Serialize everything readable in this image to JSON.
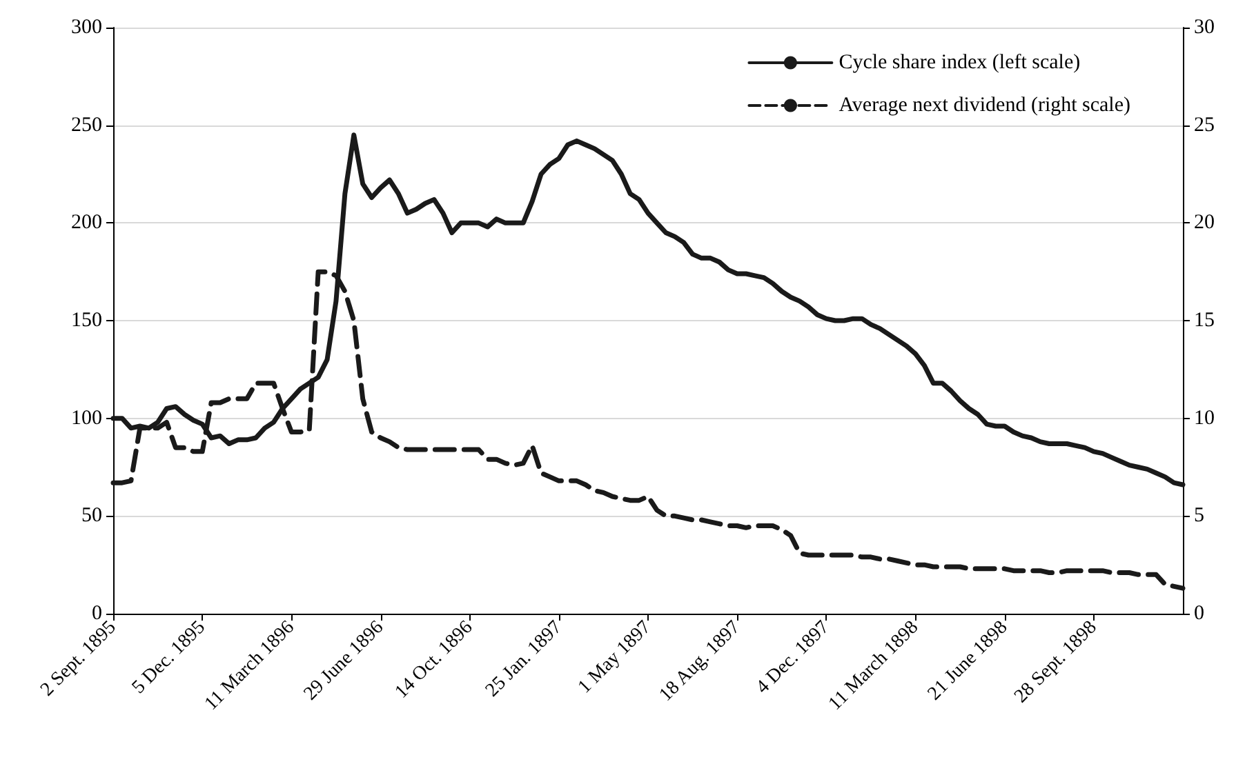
{
  "chart_data": {
    "type": "line",
    "categories": [
      "2 Sept. 1895",
      null,
      null,
      null,
      null,
      null,
      null,
      null,
      null,
      null,
      "5 Dec. 1895",
      null,
      null,
      null,
      null,
      null,
      null,
      null,
      null,
      null,
      "11 March 1896",
      null,
      null,
      null,
      null,
      null,
      null,
      null,
      null,
      null,
      "29 June 1896",
      null,
      null,
      null,
      null,
      null,
      null,
      null,
      null,
      null,
      "14 Oct. 1896",
      null,
      null,
      null,
      null,
      null,
      null,
      null,
      null,
      null,
      "25 Jan. 1897",
      null,
      null,
      null,
      null,
      null,
      null,
      null,
      null,
      null,
      "1 May 1897",
      null,
      null,
      null,
      null,
      null,
      null,
      null,
      null,
      null,
      "18 Aug. 1897",
      null,
      null,
      null,
      null,
      null,
      null,
      null,
      null,
      null,
      "4 Dec. 1897",
      null,
      null,
      null,
      null,
      null,
      null,
      null,
      null,
      null,
      "11 March 1898",
      null,
      null,
      null,
      null,
      null,
      null,
      null,
      null,
      null,
      "21 June 1898",
      null,
      null,
      null,
      null,
      null,
      null,
      null,
      null,
      null,
      "28 Sept. 1898",
      null,
      null,
      null,
      null,
      null,
      null,
      null,
      null,
      null,
      null
    ],
    "series": [
      {
        "name": "Cycle share index (left scale)",
        "color": "#1a1a1a",
        "line_style": "solid",
        "axis": "y",
        "values": [
          100,
          100,
          95,
          96,
          95,
          98,
          105,
          106,
          102,
          99,
          97,
          90,
          91,
          87,
          89,
          89,
          90,
          95,
          98,
          105,
          110,
          115,
          118,
          121,
          130,
          160,
          215,
          245,
          220,
          213,
          218,
          222,
          215,
          205,
          207,
          210,
          212,
          205,
          195,
          200,
          200,
          200,
          198,
          202,
          200,
          200,
          200,
          211,
          225,
          230,
          233,
          240,
          242,
          240,
          238,
          235,
          232,
          225,
          215,
          212,
          205,
          200,
          195,
          193,
          190,
          184,
          182,
          182,
          180,
          176,
          174,
          174,
          173,
          172,
          169,
          165,
          162,
          160,
          157,
          153,
          151,
          150,
          150,
          151,
          151,
          148,
          146,
          143,
          140,
          137,
          133,
          127,
          118,
          118,
          114,
          109,
          105,
          102,
          97,
          96,
          96,
          93,
          91,
          90,
          88,
          87,
          87,
          87,
          86,
          85,
          83,
          82,
          80,
          78,
          76,
          75,
          74,
          72,
          70,
          67,
          66
        ]
      },
      {
        "name": "Average next dividend (right scale)",
        "color": "#1a1a1a",
        "line_style": "dashed",
        "axis": "y2",
        "values": [
          6.7,
          6.7,
          6.8,
          9.5,
          9.5,
          9.5,
          9.8,
          8.5,
          8.5,
          8.3,
          8.3,
          10.8,
          10.8,
          11,
          11,
          11,
          11.8,
          11.8,
          11.8,
          10.5,
          9.3,
          9.3,
          9.4,
          17.5,
          17.5,
          17.3,
          16.5,
          15,
          11,
          9.3,
          9,
          8.8,
          8.5,
          8.4,
          8.4,
          8.4,
          8.4,
          8.4,
          8.4,
          8.4,
          8.4,
          8.4,
          7.9,
          7.9,
          7.7,
          7.6,
          7.7,
          8.6,
          7.2,
          7,
          6.8,
          6.8,
          6.8,
          6.6,
          6.3,
          6.2,
          6,
          5.9,
          5.8,
          5.8,
          6,
          5.3,
          5,
          5,
          4.9,
          4.8,
          4.8,
          4.7,
          4.6,
          4.5,
          4.5,
          4.4,
          4.5,
          4.5,
          4.5,
          4.3,
          4,
          3.1,
          3,
          3,
          3,
          3,
          3,
          3,
          2.9,
          2.9,
          2.8,
          2.8,
          2.7,
          2.6,
          2.5,
          2.5,
          2.4,
          2.4,
          2.4,
          2.4,
          2.3,
          2.3,
          2.3,
          2.3,
          2.3,
          2.2,
          2.2,
          2.2,
          2.2,
          2.1,
          2.1,
          2.2,
          2.2,
          2.2,
          2.2,
          2.2,
          2.1,
          2.1,
          2.1,
          2,
          2,
          2,
          1.5,
          1.4,
          1.3
        ]
      }
    ],
    "ylim": [
      0,
      300
    ],
    "yticks": [
      0,
      50,
      100,
      150,
      200,
      250,
      300
    ],
    "y2lim": [
      0,
      30
    ],
    "y2ticks": [
      0,
      5,
      10,
      15,
      20,
      25,
      30
    ],
    "grid": "y",
    "legend": "top right",
    "marker": "none"
  }
}
